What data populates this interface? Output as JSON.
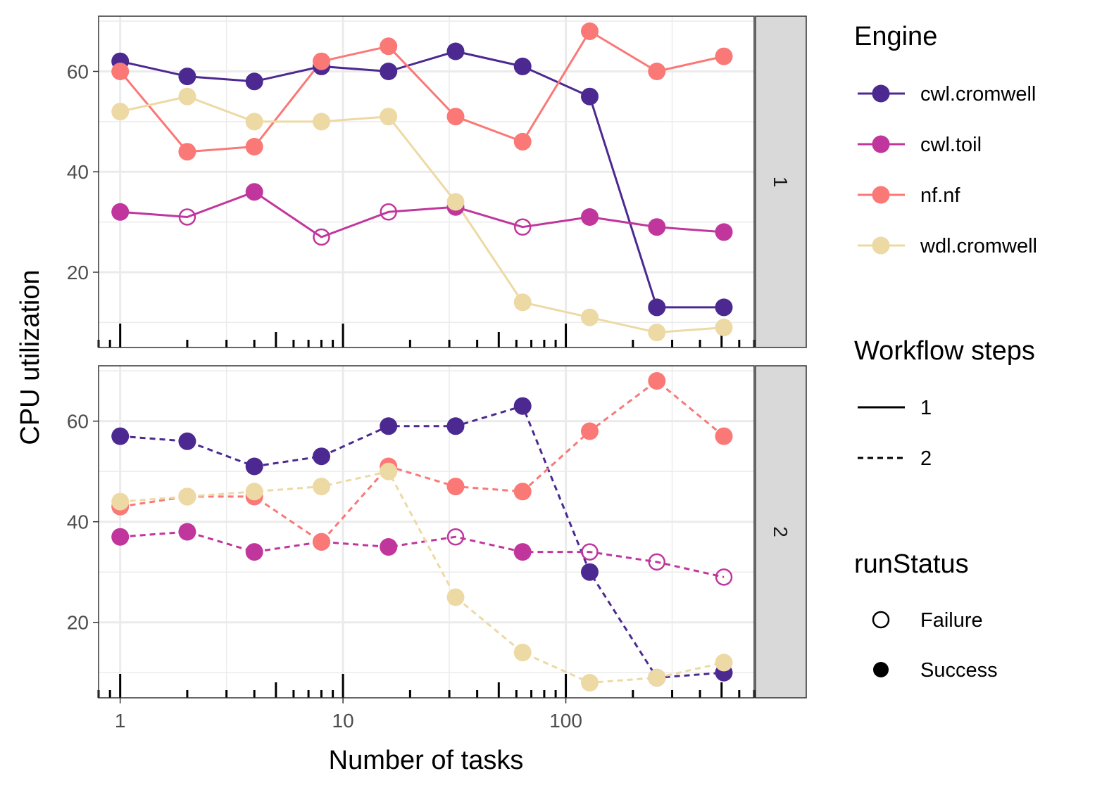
{
  "chart_data": {
    "type": "line",
    "xlabel": "Number of tasks",
    "ylabel": "CPU utilization",
    "x_scale": "log10",
    "xlim": [
      0.8,
      700
    ],
    "ylim": [
      5,
      71
    ],
    "x_ticks": [
      {
        "value": 1,
        "label": "1"
      },
      {
        "value": 10,
        "label": "10"
      },
      {
        "value": 100,
        "label": "100"
      }
    ],
    "y_ticks": [
      {
        "value": 20,
        "label": "20"
      },
      {
        "value": 40,
        "label": "40"
      },
      {
        "value": 60,
        "label": "60"
      }
    ],
    "grid": true,
    "rug": true,
    "facets": [
      {
        "strip_label": "1",
        "linetype": "solid",
        "series": [
          {
            "name": "cwl.cromwell",
            "color": "#4B2991",
            "x": [
              1,
              2,
              4,
              8,
              16,
              32,
              64,
              128,
              256,
              512
            ],
            "values": [
              62,
              59,
              58,
              61,
              60,
              64,
              61,
              55,
              13,
              13
            ],
            "status": [
              "Success",
              "Success",
              "Success",
              "Success",
              "Success",
              "Success",
              "Success",
              "Success",
              "Success",
              "Success"
            ]
          },
          {
            "name": "cwl.toil",
            "color": "#C0369D",
            "x": [
              1,
              2,
              4,
              8,
              16,
              32,
              64,
              128,
              256,
              512
            ],
            "values": [
              32,
              31,
              36,
              27,
              32,
              33,
              29,
              31,
              29,
              28
            ],
            "status": [
              "Success",
              "Failure",
              "Success",
              "Failure",
              "Failure",
              "Success",
              "Failure",
              "Success",
              "Success",
              "Success"
            ]
          },
          {
            "name": "nf.nf",
            "color": "#FA7876",
            "x": [
              1,
              2,
              4,
              8,
              16,
              32,
              64,
              128,
              256,
              512
            ],
            "values": [
              60,
              44,
              45,
              62,
              65,
              51,
              46,
              68,
              60,
              63
            ],
            "status": [
              "Success",
              "Success",
              "Success",
              "Success",
              "Success",
              "Success",
              "Success",
              "Success",
              "Success",
              "Success"
            ]
          },
          {
            "name": "wdl.cromwell",
            "color": "#EDD9A3",
            "x": [
              1,
              2,
              4,
              8,
              16,
              32,
              64,
              128,
              256,
              512
            ],
            "values": [
              52,
              55,
              50,
              50,
              51,
              34,
              14,
              11,
              8,
              9
            ],
            "status": [
              "Success",
              "Success",
              "Success",
              "Success",
              "Success",
              "Success",
              "Success",
              "Success",
              "Success",
              "Success"
            ]
          }
        ]
      },
      {
        "strip_label": "2",
        "linetype": "dashed",
        "series": [
          {
            "name": "cwl.cromwell",
            "color": "#4B2991",
            "x": [
              1,
              2,
              4,
              8,
              16,
              32,
              64,
              128,
              256,
              512
            ],
            "values": [
              57,
              56,
              51,
              53,
              59,
              59,
              63,
              30,
              9,
              10
            ],
            "status": [
              "Success",
              "Success",
              "Success",
              "Success",
              "Success",
              "Success",
              "Success",
              "Success",
              "Success",
              "Success"
            ]
          },
          {
            "name": "cwl.toil",
            "color": "#C0369D",
            "x": [
              1,
              2,
              4,
              8,
              16,
              32,
              64,
              128,
              256,
              512
            ],
            "values": [
              37,
              38,
              34,
              36,
              35,
              37,
              34,
              34,
              32,
              29
            ],
            "status": [
              "Success",
              "Success",
              "Success",
              "Success",
              "Success",
              "Failure",
              "Success",
              "Failure",
              "Failure",
              "Failure"
            ]
          },
          {
            "name": "nf.nf",
            "color": "#FA7876",
            "x": [
              1,
              2,
              4,
              8,
              16,
              32,
              64,
              128,
              256,
              512
            ],
            "values": [
              43,
              45,
              45,
              36,
              51,
              47,
              46,
              58,
              68,
              57
            ],
            "status": [
              "Success",
              "Success",
              "Success",
              "Success",
              "Success",
              "Success",
              "Success",
              "Success",
              "Success",
              "Success"
            ]
          },
          {
            "name": "wdl.cromwell",
            "color": "#EDD9A3",
            "x": [
              1,
              2,
              4,
              8,
              16,
              32,
              64,
              128,
              256,
              512
            ],
            "values": [
              44,
              45,
              46,
              47,
              50,
              25,
              14,
              8,
              9,
              12
            ],
            "status": [
              "Success",
              "Success",
              "Success",
              "Success",
              "Success",
              "Success",
              "Success",
              "Success",
              "Success",
              "Success"
            ]
          }
        ]
      }
    ],
    "legends": [
      {
        "title": "Engine",
        "kind": "color",
        "items": [
          {
            "label": "cwl.cromwell",
            "color": "#4B2991"
          },
          {
            "label": "cwl.toil",
            "color": "#C0369D"
          },
          {
            "label": "nf.nf",
            "color": "#FA7876"
          },
          {
            "label": "wdl.cromwell",
            "color": "#EDD9A3"
          }
        ]
      },
      {
        "title": "Workflow steps",
        "kind": "linetype",
        "items": [
          {
            "label": "1",
            "linetype": "solid"
          },
          {
            "label": "2",
            "linetype": "dashed"
          }
        ]
      },
      {
        "title": "runStatus",
        "kind": "shape",
        "items": [
          {
            "label": "Failure",
            "shape": "open-circle"
          },
          {
            "label": "Success",
            "shape": "filled-circle"
          }
        ]
      }
    ]
  }
}
